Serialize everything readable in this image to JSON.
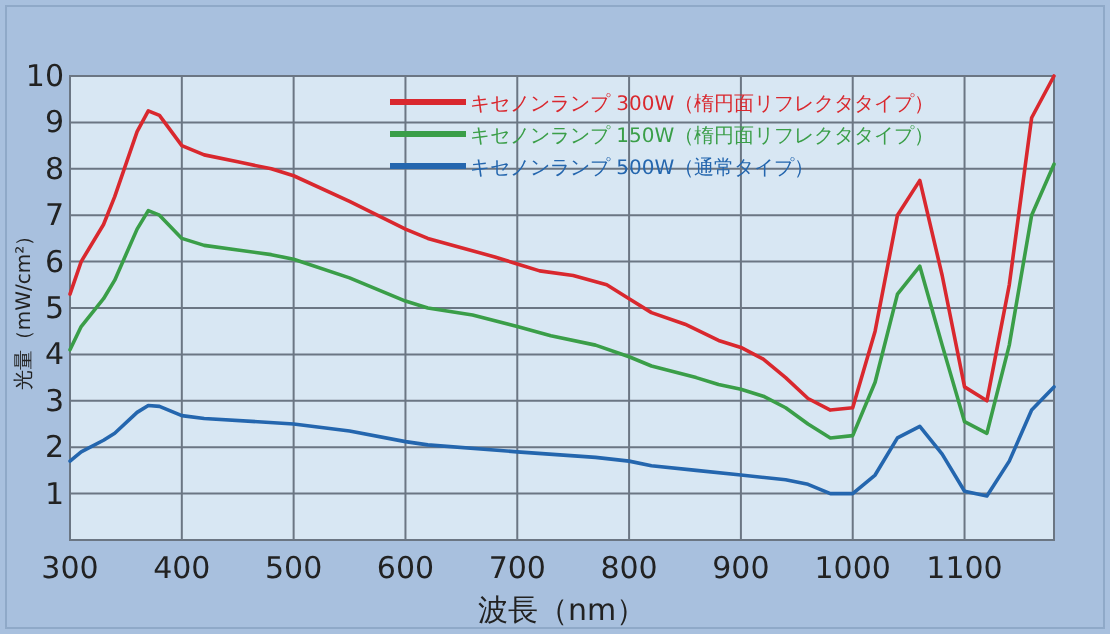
{
  "chart_data": {
    "type": "line",
    "xlabel": "波長（nm）",
    "ylabel": "光量（mW/cm²）",
    "xlim": [
      300,
      1180
    ],
    "ylim": [
      0,
      10
    ],
    "xticks": [
      300,
      400,
      500,
      600,
      700,
      800,
      900,
      1000,
      1100
    ],
    "yticks": [
      1,
      2,
      3,
      4,
      5,
      6,
      7,
      8,
      9,
      10
    ],
    "grid": true,
    "legend": "top",
    "marker": "none",
    "line_style": "solid",
    "series": [
      {
        "name": "キセノンランプ 300W（楕円面リフレクタタイプ）",
        "color": "#d9282e",
        "x": [
          300,
          310,
          330,
          340,
          360,
          370,
          380,
          400,
          420,
          450,
          480,
          500,
          550,
          600,
          620,
          650,
          680,
          700,
          720,
          750,
          780,
          800,
          820,
          850,
          880,
          900,
          920,
          940,
          960,
          980,
          1000,
          1020,
          1040,
          1060,
          1080,
          1100,
          1120,
          1140,
          1160,
          1180
        ],
        "values": [
          5.3,
          6.0,
          6.8,
          7.4,
          8.8,
          9.25,
          9.15,
          8.5,
          8.3,
          8.15,
          8.0,
          7.85,
          7.3,
          6.7,
          6.5,
          6.3,
          6.1,
          5.95,
          5.8,
          5.7,
          5.5,
          5.2,
          4.9,
          4.65,
          4.3,
          4.15,
          3.9,
          3.5,
          3.05,
          2.8,
          2.85,
          4.5,
          7.0,
          7.75,
          5.7,
          3.3,
          3.0,
          5.5,
          9.1,
          10.0
        ]
      },
      {
        "name": "キセノンランプ 150W（楕円面リフレクタタイプ）",
        "color": "#3a9e48",
        "x": [
          300,
          310,
          330,
          340,
          360,
          370,
          380,
          400,
          420,
          450,
          480,
          500,
          550,
          600,
          620,
          660,
          700,
          730,
          770,
          800,
          820,
          860,
          880,
          900,
          920,
          940,
          960,
          980,
          1000,
          1020,
          1040,
          1060,
          1080,
          1100,
          1120,
          1140,
          1160,
          1180
        ],
        "values": [
          4.1,
          4.6,
          5.2,
          5.6,
          6.7,
          7.1,
          7.0,
          6.5,
          6.35,
          6.25,
          6.15,
          6.05,
          5.65,
          5.15,
          5.0,
          4.85,
          4.6,
          4.4,
          4.2,
          3.95,
          3.75,
          3.5,
          3.35,
          3.25,
          3.1,
          2.85,
          2.5,
          2.2,
          2.25,
          3.4,
          5.3,
          5.9,
          4.2,
          2.55,
          2.3,
          4.2,
          7.0,
          8.1
        ]
      },
      {
        "name": "キセノンランプ 500W（通常タイプ）",
        "color": "#2466ae",
        "x": [
          300,
          310,
          330,
          340,
          360,
          370,
          380,
          400,
          420,
          500,
          550,
          600,
          620,
          700,
          770,
          800,
          820,
          860,
          900,
          940,
          960,
          980,
          1000,
          1020,
          1040,
          1060,
          1080,
          1100,
          1120,
          1140,
          1160,
          1180
        ],
        "values": [
          1.7,
          1.9,
          2.15,
          2.3,
          2.75,
          2.9,
          2.88,
          2.68,
          2.62,
          2.5,
          2.35,
          2.12,
          2.05,
          1.9,
          1.78,
          1.7,
          1.6,
          1.5,
          1.4,
          1.3,
          1.2,
          1.0,
          1.0,
          1.4,
          2.2,
          2.45,
          1.85,
          1.05,
          0.95,
          1.7,
          2.8,
          3.3
        ]
      }
    ]
  }
}
